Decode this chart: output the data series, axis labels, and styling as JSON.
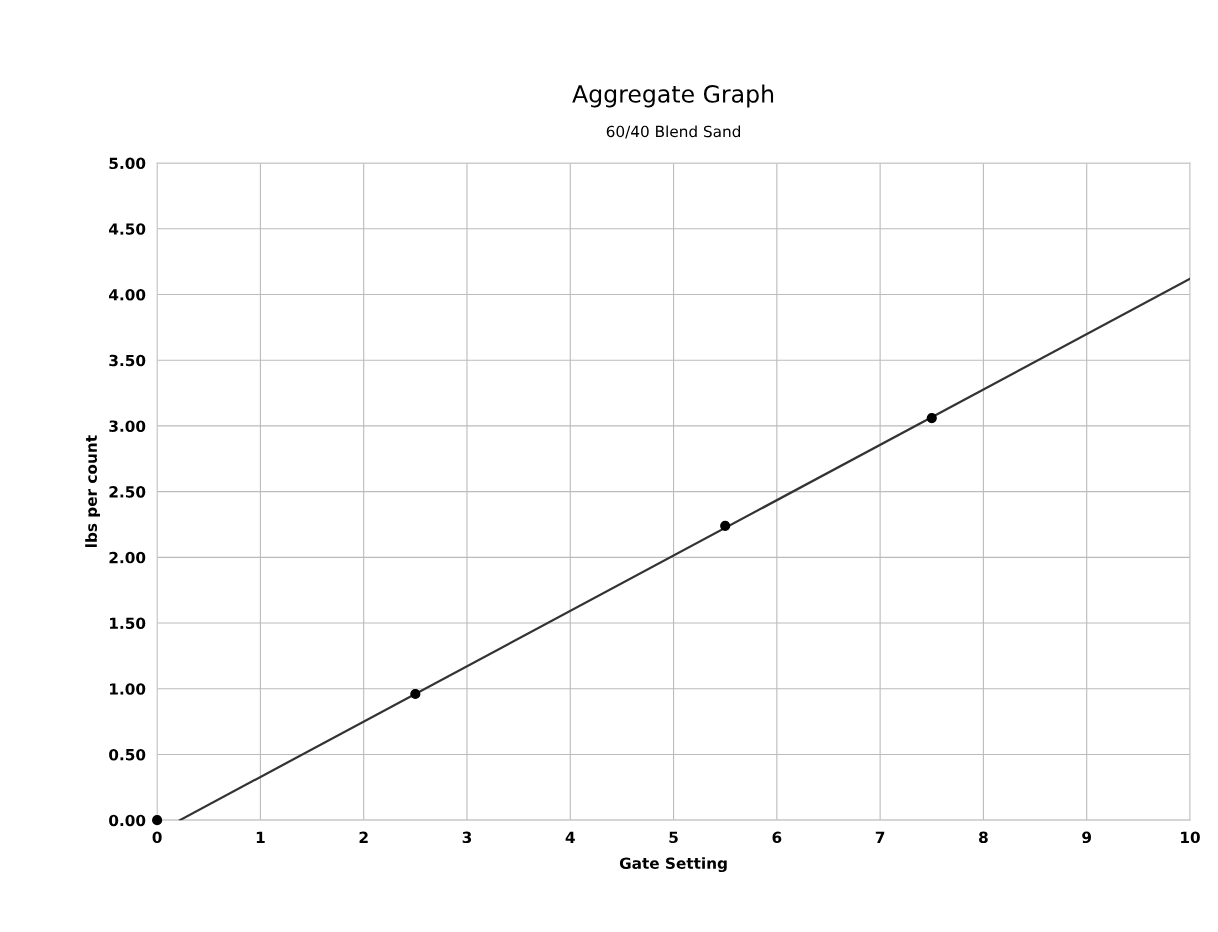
{
  "chart_data": {
    "type": "scatter",
    "title": "Aggregate Graph",
    "subtitle": "60/40 Blend Sand",
    "xlabel": "Gate Setting",
    "ylabel": "lbs per count",
    "series": [
      {
        "color": "#000000",
        "marker": "circle",
        "x": [
          0,
          2.5,
          5.5,
          7.5
        ],
        "values": [
          0,
          0.96,
          2.24,
          3.06
        ]
      },
      {
        "type": "line",
        "color": "#333333",
        "marker": "none",
        "line_style": "solid",
        "x": [
          0.22,
          10
        ],
        "values": [
          0,
          4.12
        ]
      }
    ],
    "xlim": [
      0,
      10
    ],
    "xticks": [
      0,
      1,
      2,
      3,
      4,
      5,
      6,
      7,
      8,
      9,
      10
    ],
    "ylim": [
      0,
      5
    ],
    "yticks": [
      {
        "value": 0,
        "label": "0.00"
      },
      {
        "value": 0.5,
        "label": "0.50"
      },
      {
        "value": 1,
        "label": "1.00"
      },
      {
        "value": 1.5,
        "label": "1.50"
      },
      {
        "value": 2,
        "label": "2.00"
      },
      {
        "value": 2.5,
        "label": "2.50"
      },
      {
        "value": 3,
        "label": "3.00"
      },
      {
        "value": 3.5,
        "label": "3.50"
      },
      {
        "value": 4,
        "label": "4.00"
      },
      {
        "value": 4.5,
        "label": "4.50"
      },
      {
        "value": 5,
        "label": "5.00"
      }
    ],
    "grid": true
  }
}
